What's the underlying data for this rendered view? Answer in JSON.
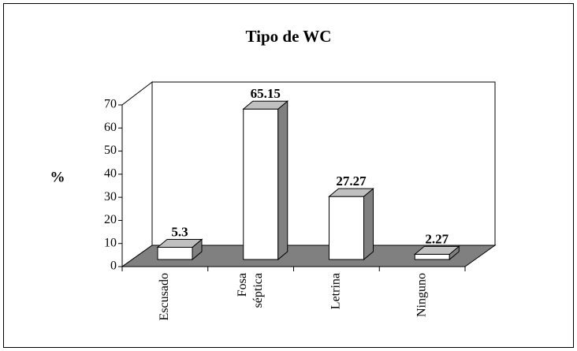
{
  "chart_data": {
    "type": "bar3d",
    "title": "Tipo de WC",
    "y_label": "%",
    "categories": [
      "Escusado",
      "Fosa séptica",
      "Letrina",
      "Ninguno"
    ],
    "values": [
      5.3,
      65.15,
      27.27,
      2.27
    ],
    "color": "#ffffff",
    "ylim": [
      0,
      70
    ],
    "yticks": [
      0,
      10,
      20,
      30,
      40,
      50,
      60,
      70
    ]
  }
}
